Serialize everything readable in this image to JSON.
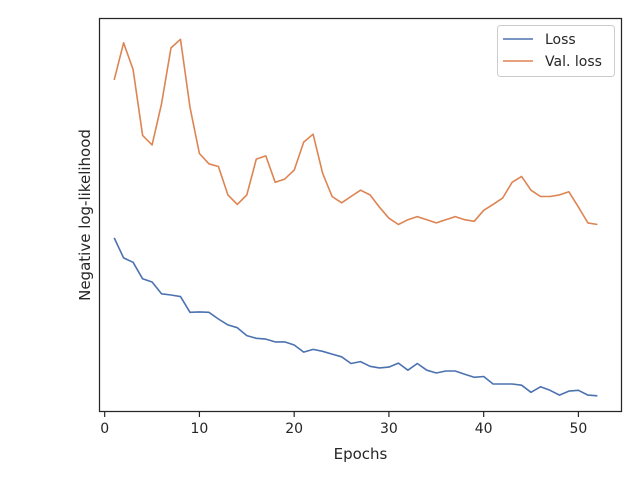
{
  "chart_data": {
    "type": "line",
    "title": "",
    "xlabel": "Epochs",
    "ylabel": "Negative log-likelihood",
    "xlim": [
      -0.6,
      54.6
    ],
    "ylim": [
      0,
      100
    ],
    "xticks": [
      0,
      10,
      20,
      30,
      40,
      50
    ],
    "y_tick_labels_shown": false,
    "grid": false,
    "legend_position": "top-right",
    "x": [
      1,
      2,
      3,
      4,
      5,
      6,
      7,
      8,
      9,
      10,
      11,
      12,
      13,
      14,
      15,
      16,
      17,
      18,
      19,
      20,
      21,
      22,
      23,
      24,
      25,
      26,
      27,
      28,
      29,
      30,
      31,
      32,
      33,
      34,
      35,
      36,
      37,
      38,
      39,
      40,
      41,
      42,
      43,
      44,
      45,
      46,
      47,
      48,
      49,
      50,
      51,
      52
    ],
    "series": [
      {
        "name": "Loss",
        "color": "#4c72b0",
        "values": [
          44.2,
          39.1,
          38.0,
          33.8,
          33.0,
          30.0,
          29.7,
          29.3,
          25.3,
          25.4,
          25.3,
          23.6,
          22.1,
          21.4,
          19.4,
          18.7,
          18.5,
          17.8,
          17.8,
          17.0,
          15.2,
          15.9,
          15.4,
          14.7,
          14.0,
          12.3,
          12.8,
          11.6,
          11.2,
          11.4,
          12.4,
          10.6,
          12.3,
          10.6,
          9.9,
          10.4,
          10.4,
          9.6,
          8.8,
          9.0,
          7.1,
          7.1,
          7.1,
          6.8,
          5.0,
          6.4,
          5.5,
          4.3,
          5.3,
          5.5,
          4.3,
          4.1
        ]
      },
      {
        "name": "Val. loss",
        "color": "#dd8452",
        "values": [
          84.3,
          93.7,
          86.9,
          70.2,
          67.8,
          78.2,
          92.4,
          94.6,
          77.3,
          65.6,
          63.0,
          62.3,
          55.1,
          52.7,
          55.1,
          64.2,
          65.0,
          58.3,
          59.1,
          61.4,
          68.5,
          70.5,
          60.6,
          54.7,
          53.1,
          54.7,
          56.3,
          55.1,
          52.0,
          49.2,
          47.6,
          48.8,
          49.6,
          48.8,
          48.0,
          48.8,
          49.6,
          48.8,
          48.4,
          51.2,
          52.7,
          54.3,
          58.3,
          59.8,
          56.3,
          54.7,
          54.7,
          55.1,
          55.9,
          52.0,
          48.0,
          47.6
        ]
      }
    ]
  }
}
